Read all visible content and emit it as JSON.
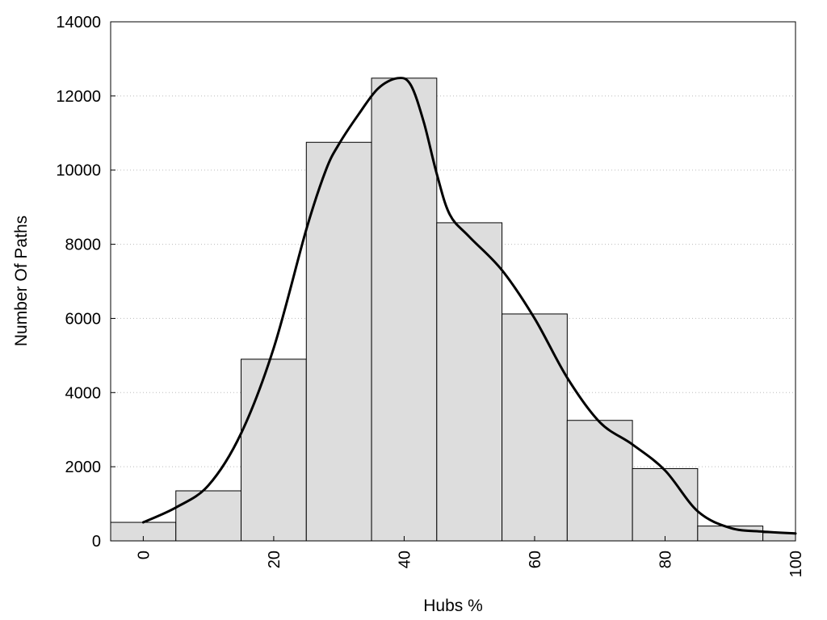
{
  "chart_data": {
    "type": "bar",
    "xlabel": "Hubs %",
    "ylabel": "Number Of Paths",
    "xlim": [
      -5,
      100
    ],
    "ylim": [
      0,
      14000
    ],
    "grid": "horizontal dotted",
    "bar_color": "#dddddd",
    "edge_color": "#000000",
    "line_color": "#000000",
    "x_ticks": [
      "0",
      "20",
      "40",
      "60",
      "80",
      "100"
    ],
    "y_ticks": [
      "0",
      "2000",
      "4000",
      "6000",
      "8000",
      "10000",
      "12000",
      "14000"
    ],
    "bins": [
      {
        "x0": -5,
        "x1": 5,
        "value": 500
      },
      {
        "x0": 5,
        "x1": 15,
        "value": 1350
      },
      {
        "x0": 15,
        "x1": 25,
        "value": 4900
      },
      {
        "x0": 25,
        "x1": 35,
        "value": 10750
      },
      {
        "x0": 35,
        "x1": 45,
        "value": 12480
      },
      {
        "x0": 45,
        "x1": 55,
        "value": 8580
      },
      {
        "x0": 55,
        "x1": 65,
        "value": 6120
      },
      {
        "x0": 65,
        "x1": 75,
        "value": 3250
      },
      {
        "x0": 75,
        "x1": 85,
        "value": 1950
      },
      {
        "x0": 85,
        "x1": 95,
        "value": 400
      },
      {
        "x0": 95,
        "x1": 100,
        "value": 220
      }
    ],
    "density_curve": {
      "x": [
        0,
        5,
        10,
        15,
        20,
        25,
        28,
        30,
        33,
        36,
        39,
        41,
        43,
        45,
        47,
        50,
        55,
        60,
        65,
        70,
        75,
        80,
        85,
        90,
        95,
        100
      ],
      "y": [
        500,
        900,
        1500,
        2900,
        5200,
        8400,
        10000,
        10700,
        11500,
        12200,
        12480,
        12300,
        11300,
        9900,
        8800,
        8200,
        7300,
        6000,
        4400,
        3200,
        2600,
        1900,
        800,
        350,
        250,
        200
      ]
    }
  }
}
